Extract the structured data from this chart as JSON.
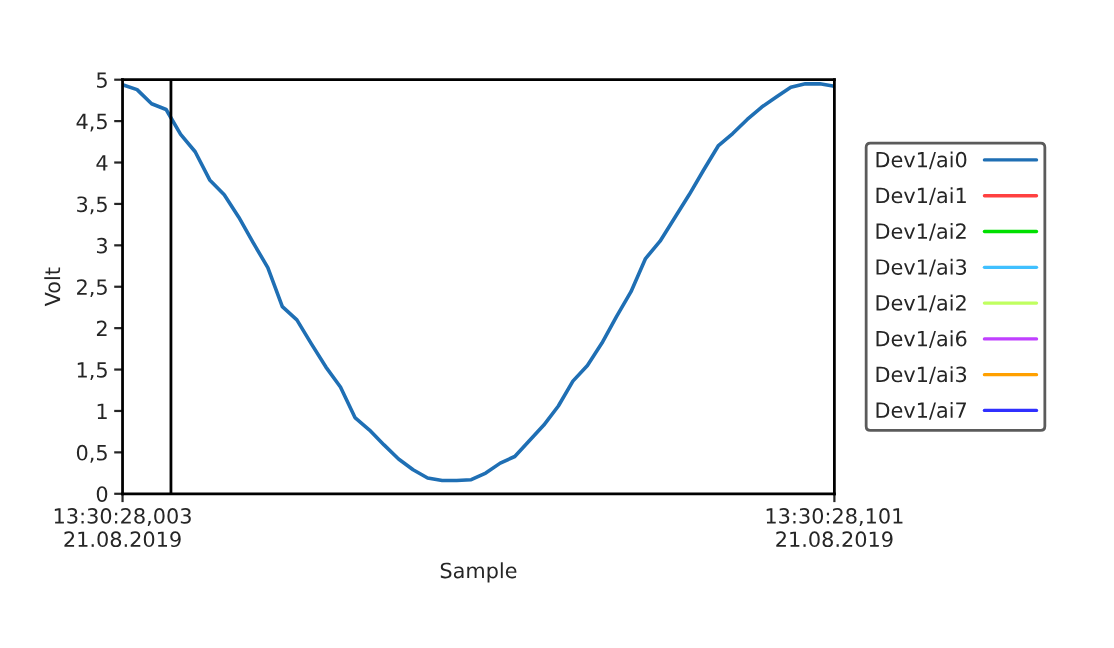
{
  "chart_data": {
    "type": "line",
    "xlabel": "Sample",
    "ylabel": "Volt",
    "categories": [
      "13:30:28,003\n21.08.2019",
      null,
      null,
      null,
      null,
      null,
      null,
      null,
      null,
      null,
      null,
      null,
      null,
      null,
      null,
      null,
      null,
      null,
      null,
      null,
      null,
      null,
      null,
      null,
      null,
      null,
      null,
      null,
      null,
      null,
      null,
      null,
      null,
      null,
      null,
      null,
      null,
      null,
      null,
      null,
      null,
      null,
      null,
      null,
      null,
      null,
      null,
      null,
      null,
      "13:30:28,101\n21.08.2019"
    ],
    "ylim": [
      0,
      5
    ],
    "yticks": [
      0,
      {
        "value": 0.5,
        "label": "0,5"
      },
      1,
      {
        "value": 1.5,
        "label": "1,5"
      },
      2,
      {
        "value": 2.5,
        "label": "2,5"
      },
      3,
      {
        "value": 3.5,
        "label": "3,5"
      },
      4,
      {
        "value": 4.5,
        "label": "4,5"
      },
      5
    ],
    "grid": false,
    "legend": "right",
    "line_style": "solid",
    "marker": "none",
    "series": [
      {
        "name": "Dev1/ai0",
        "color": "#1f6fb4",
        "values": [
          4.94,
          4.88,
          4.71,
          4.64,
          4.34,
          4.13,
          3.79,
          3.61,
          3.34,
          3.03,
          2.73,
          2.26,
          2.1,
          1.81,
          1.53,
          1.29,
          0.92,
          0.77,
          0.59,
          0.42,
          0.29,
          0.19,
          0.16,
          0.16,
          0.17,
          0.25,
          0.37,
          0.45,
          0.64,
          0.83,
          1.06,
          1.36,
          1.55,
          1.82,
          2.14,
          2.44,
          2.84,
          3.05,
          3.33,
          3.61,
          3.91,
          4.2,
          4.35,
          4.52,
          4.67,
          4.79,
          4.91,
          4.95,
          4.95,
          4.92
        ]
      },
      {
        "name": "Dev1/ai1",
        "color": "#ff4040",
        "values": [
          null,
          null,
          null,
          null,
          null,
          null,
          null,
          null,
          null,
          null,
          null,
          null,
          null,
          null,
          null,
          null,
          null,
          null,
          null,
          null,
          null,
          null,
          null,
          null,
          null,
          null,
          null,
          null,
          null,
          null,
          null,
          null,
          null,
          null,
          null,
          null,
          null,
          null,
          null,
          null,
          null,
          null,
          null,
          null,
          null,
          null,
          null,
          null,
          null,
          null
        ]
      },
      {
        "name": "Dev1/ai2",
        "color": "#00e000",
        "values": [
          null,
          null,
          null,
          null,
          null,
          null,
          null,
          null,
          null,
          null,
          null,
          null,
          null,
          null,
          null,
          null,
          null,
          null,
          null,
          null,
          null,
          null,
          null,
          null,
          null,
          null,
          null,
          null,
          null,
          null,
          null,
          null,
          null,
          null,
          null,
          null,
          null,
          null,
          null,
          null,
          null,
          null,
          null,
          null,
          null,
          null,
          null,
          null,
          null,
          null
        ]
      },
      {
        "name": "Dev1/ai3",
        "color": "#40c0ff",
        "values": [
          null,
          null,
          null,
          null,
          null,
          null,
          null,
          null,
          null,
          null,
          null,
          null,
          null,
          null,
          null,
          null,
          null,
          null,
          null,
          null,
          null,
          null,
          null,
          null,
          null,
          null,
          null,
          null,
          null,
          null,
          null,
          null,
          null,
          null,
          null,
          null,
          null,
          null,
          null,
          null,
          null,
          null,
          null,
          null,
          null,
          null,
          null,
          null,
          null,
          null
        ]
      },
      {
        "name": "Dev1/ai2",
        "color": "#c0ff60",
        "values": [
          null,
          null,
          null,
          null,
          null,
          null,
          null,
          null,
          null,
          null,
          null,
          null,
          null,
          null,
          null,
          null,
          null,
          null,
          null,
          null,
          null,
          null,
          null,
          null,
          null,
          null,
          null,
          null,
          null,
          null,
          null,
          null,
          null,
          null,
          null,
          null,
          null,
          null,
          null,
          null,
          null,
          null,
          null,
          null,
          null,
          null,
          null,
          null,
          null,
          null
        ]
      },
      {
        "name": "Dev1/ai6",
        "color": "#c040ff",
        "values": [
          null,
          null,
          null,
          null,
          null,
          null,
          null,
          null,
          null,
          null,
          null,
          null,
          null,
          null,
          null,
          null,
          null,
          null,
          null,
          null,
          null,
          null,
          null,
          null,
          null,
          null,
          null,
          null,
          null,
          null,
          null,
          null,
          null,
          null,
          null,
          null,
          null,
          null,
          null,
          null,
          null,
          null,
          null,
          null,
          null,
          null,
          null,
          null,
          null,
          null
        ]
      },
      {
        "name": "Dev1/ai3",
        "color": "#ffa000",
        "values": [
          null,
          null,
          null,
          null,
          null,
          null,
          null,
          null,
          null,
          null,
          null,
          null,
          null,
          null,
          null,
          null,
          null,
          null,
          null,
          null,
          null,
          null,
          null,
          null,
          null,
          null,
          null,
          null,
          null,
          null,
          null,
          null,
          null,
          null,
          null,
          null,
          null,
          null,
          null,
          null,
          null,
          null,
          null,
          null,
          null,
          null,
          null,
          null,
          null,
          null
        ]
      },
      {
        "name": "Dev1/ai7",
        "color": "#3030ff",
        "values": [
          null,
          null,
          null,
          null,
          null,
          null,
          null,
          null,
          null,
          null,
          null,
          null,
          null,
          null,
          null,
          null,
          null,
          null,
          null,
          null,
          null,
          null,
          null,
          null,
          null,
          null,
          null,
          null,
          null,
          null,
          null,
          null,
          null,
          null,
          null,
          null,
          null,
          null,
          null,
          null,
          null,
          null,
          null,
          null,
          null,
          null,
          null,
          null,
          null,
          null
        ]
      }
    ]
  }
}
